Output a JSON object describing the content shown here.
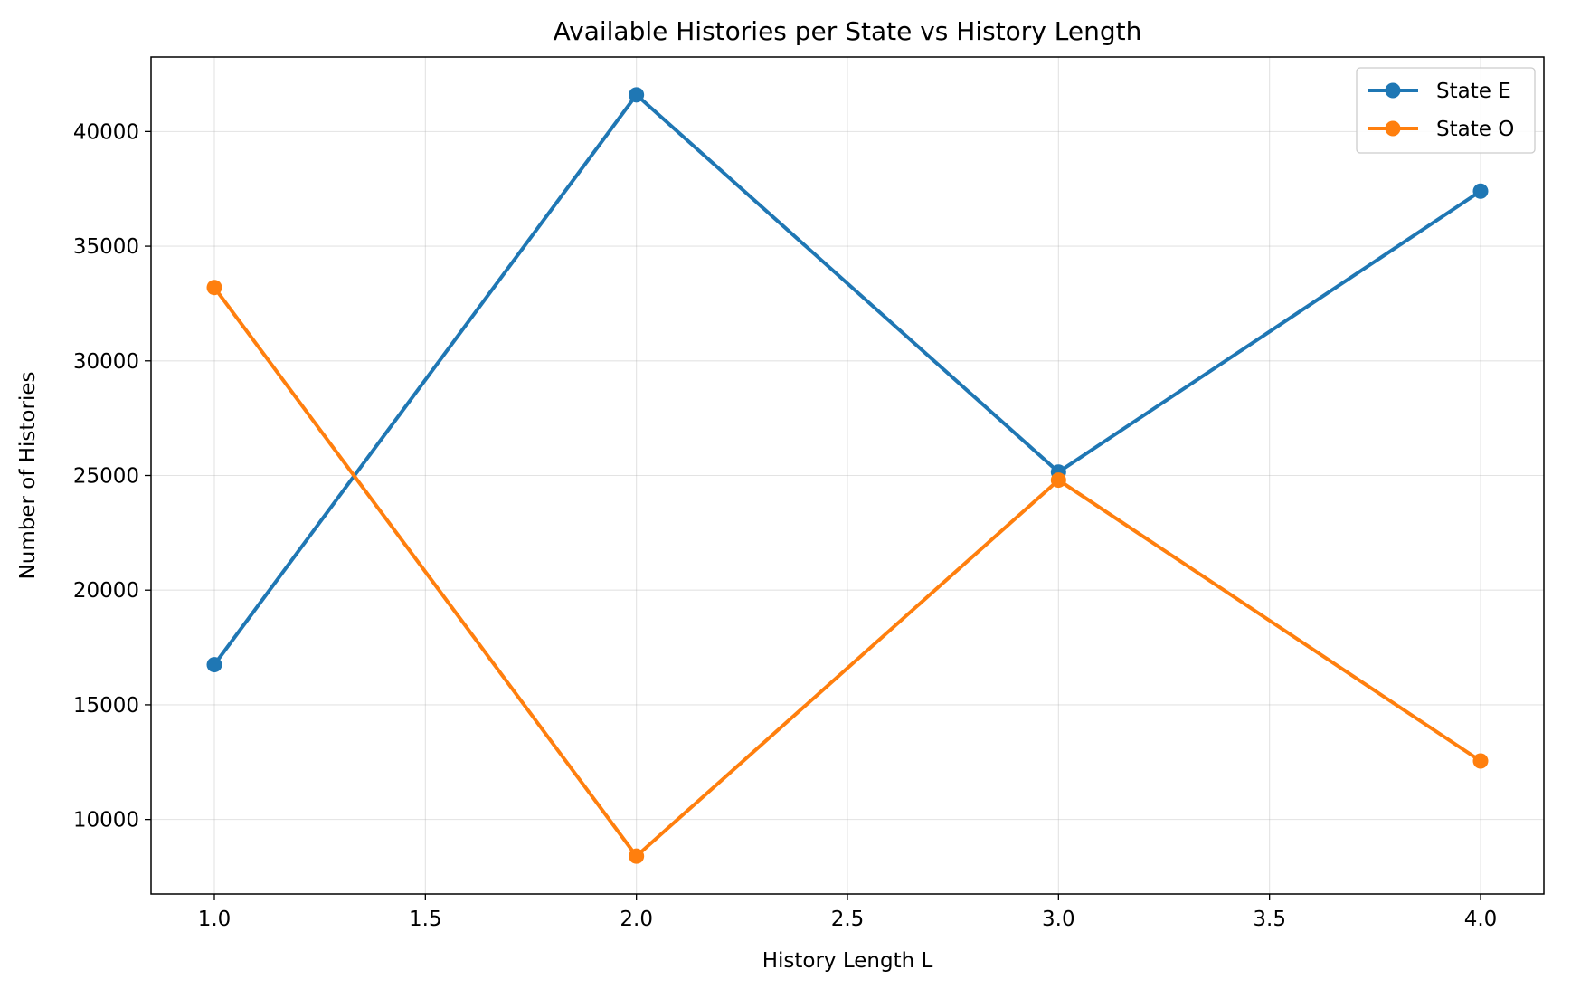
{
  "chart_data": {
    "type": "line",
    "title": "Available Histories per State vs History Length",
    "xlabel": "History Length L",
    "ylabel": "Number of Histories",
    "x": [
      1.0,
      2.0,
      3.0,
      4.0
    ],
    "series": [
      {
        "name": "State E",
        "color": "#1f77b4",
        "values": [
          16750,
          41600,
          25150,
          37400
        ]
      },
      {
        "name": "State O",
        "color": "#ff7f0e",
        "values": [
          33200,
          8400,
          24800,
          12550
        ]
      }
    ],
    "xlim": [
      0.85,
      4.15
    ],
    "ylim": [
      6750,
      43250
    ],
    "xticks": [
      1.0,
      1.5,
      2.0,
      2.5,
      3.0,
      3.5,
      4.0
    ],
    "xtick_labels": [
      "1.0",
      "1.5",
      "2.0",
      "2.5",
      "3.0",
      "3.5",
      "4.0"
    ],
    "yticks": [
      10000,
      15000,
      20000,
      25000,
      30000,
      35000,
      40000
    ],
    "ytick_labels": [
      "10000",
      "15000",
      "20000",
      "25000",
      "30000",
      "35000",
      "40000"
    ],
    "grid": true,
    "legend_position": "top-right"
  }
}
